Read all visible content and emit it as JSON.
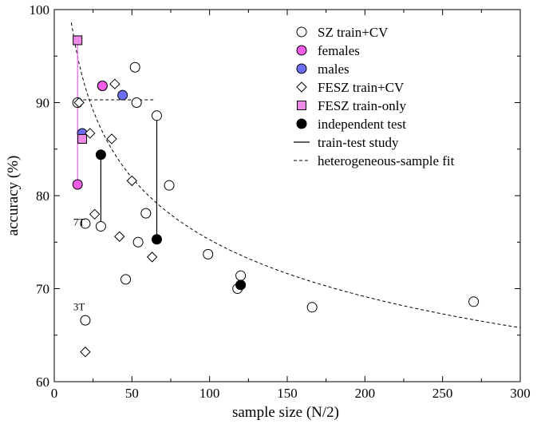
{
  "chart_data": {
    "type": "scatter",
    "title": "",
    "xlabel": "sample size (N/2)",
    "ylabel": "accuracy (%)",
    "xlim": [
      0,
      300
    ],
    "ylim": [
      60,
      100
    ],
    "xticks": [
      0,
      50,
      100,
      150,
      200,
      250,
      300
    ],
    "yticks": [
      60,
      70,
      80,
      90,
      100
    ],
    "legend": {
      "placement": "top-right",
      "entries": [
        {
          "key": "sz",
          "label": "SZ train+CV",
          "symbol": "circle",
          "fill": "#ffffff"
        },
        {
          "key": "fem",
          "label": "females",
          "symbol": "circle",
          "fill": "#f25ce8"
        },
        {
          "key": "male",
          "label": "males",
          "symbol": "circle",
          "fill": "#6b6ef5"
        },
        {
          "key": "fesz",
          "label": "FESZ train+CV",
          "symbol": "diamond",
          "fill": "#ffffff"
        },
        {
          "key": "feszonly",
          "label": "FESZ train-only",
          "symbol": "square",
          "fill": "#f08ae8"
        },
        {
          "key": "indep",
          "label": "independent test",
          "symbol": "circle",
          "fill": "#000000"
        },
        {
          "key": "tt",
          "label": "train-test study",
          "symbol": "line",
          "fill": ""
        },
        {
          "key": "fit",
          "label": "heterogeneous-sample fit",
          "symbol": "dashed",
          "fill": ""
        }
      ]
    },
    "series": [
      {
        "key": "sz",
        "name": "SZ train+CV",
        "points": [
          [
            15,
            90
          ],
          [
            20,
            77
          ],
          [
            20,
            66.6
          ],
          [
            30,
            76.7
          ],
          [
            31,
            91.8
          ],
          [
            46,
            71
          ],
          [
            52,
            93.8
          ],
          [
            53,
            90
          ],
          [
            54,
            75
          ],
          [
            59,
            78.1
          ],
          [
            66,
            88.6
          ],
          [
            74,
            81.1
          ],
          [
            99,
            73.7
          ],
          [
            118,
            70
          ],
          [
            120,
            71.4
          ],
          [
            166,
            68
          ],
          [
            270,
            68.6
          ]
        ]
      },
      {
        "key": "fem",
        "name": "females",
        "points": [
          [
            15,
            81.2
          ],
          [
            31,
            91.8
          ]
        ]
      },
      {
        "key": "male",
        "name": "males",
        "points": [
          [
            18,
            86.7
          ],
          [
            44,
            90.8
          ]
        ]
      },
      {
        "key": "fesz",
        "name": "FESZ train+CV",
        "points": [
          [
            16,
            90
          ],
          [
            20,
            63.2
          ],
          [
            23,
            86.7
          ],
          [
            26,
            78
          ],
          [
            37,
            86.1
          ],
          [
            39,
            92
          ],
          [
            42,
            75.6
          ],
          [
            50,
            81.6
          ],
          [
            63,
            73.4
          ]
        ]
      },
      {
        "key": "feszonly",
        "name": "FESZ train-only",
        "points": [
          [
            15,
            96.7
          ],
          [
            18,
            86.1
          ]
        ]
      },
      {
        "key": "indep",
        "name": "independent test",
        "points": [
          [
            30,
            84.4
          ],
          [
            66,
            75.3
          ],
          [
            120,
            70.4
          ]
        ]
      }
    ],
    "train_test_links": [
      {
        "x": 15,
        "from": 96.7,
        "to": 81.2,
        "color": "#f25ce8"
      },
      {
        "x": 30,
        "from": 84.4,
        "to": 76.7,
        "color": "#000000"
      },
      {
        "x": 66,
        "from": 88.6,
        "to": 75.3,
        "color": "#000000"
      },
      {
        "x": 120,
        "from": 71.4,
        "to": 70.4,
        "color": "#000000"
      }
    ],
    "fit_curve": {
      "x_start": 11,
      "x_end": 300,
      "y_start": 98.6,
      "y_end": 65.8
    },
    "reference_line": {
      "y": 90.3,
      "x_from": 15,
      "x_to": 65
    },
    "annotations": [
      {
        "text": "7T",
        "x": 16,
        "y": 76.8
      },
      {
        "text": "3T",
        "x": 16,
        "y": 67.7
      }
    ]
  }
}
